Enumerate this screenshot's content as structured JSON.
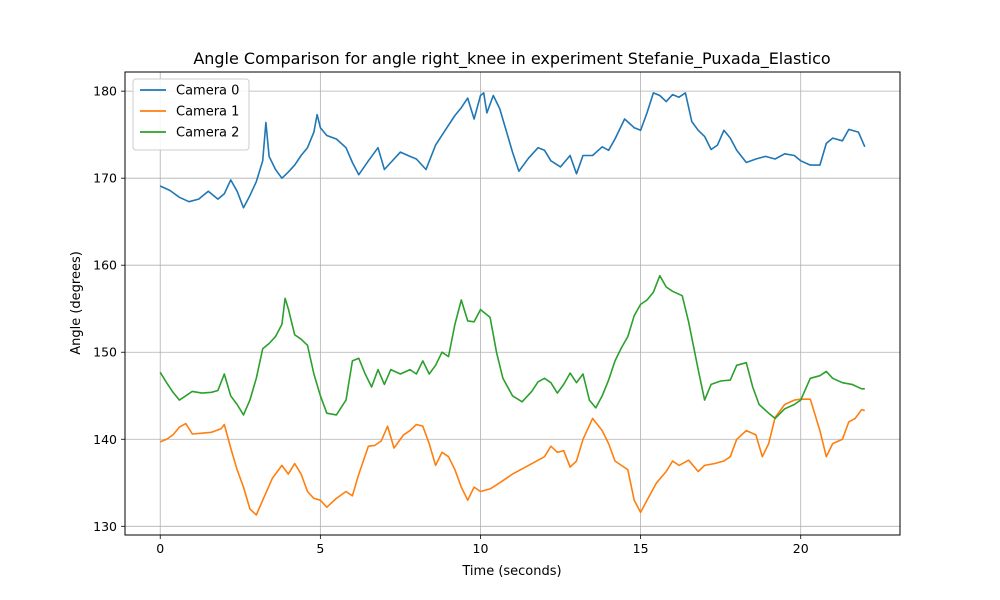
{
  "chart_data": {
    "type": "line",
    "title": "Angle Comparison for angle right_knee in experiment Stefanie_Puxada_Elastico",
    "xlabel": "Time (seconds)",
    "ylabel": "Angle (degrees)",
    "xlim": [
      -1.1,
      23.1
    ],
    "ylim": [
      129.0,
      182.2
    ],
    "xticks": [
      0,
      5,
      10,
      15,
      20
    ],
    "yticks": [
      130,
      140,
      150,
      160,
      170,
      180
    ],
    "grid": true,
    "legend_position": "top-left",
    "series": [
      {
        "name": "Camera 0",
        "color": "#1f77b4",
        "points": [
          [
            0,
            169.1
          ],
          [
            0.3,
            168.6
          ],
          [
            0.6,
            167.8
          ],
          [
            0.9,
            167.3
          ],
          [
            1.2,
            167.6
          ],
          [
            1.5,
            168.5
          ],
          [
            1.8,
            167.6
          ],
          [
            2.0,
            168.2
          ],
          [
            2.2,
            169.8
          ],
          [
            2.4,
            168.5
          ],
          [
            2.6,
            166.6
          ],
          [
            2.8,
            168.0
          ],
          [
            3.0,
            169.6
          ],
          [
            3.2,
            172.0
          ],
          [
            3.3,
            176.4
          ],
          [
            3.4,
            172.5
          ],
          [
            3.6,
            171.0
          ],
          [
            3.8,
            170.0
          ],
          [
            4.0,
            170.7
          ],
          [
            4.2,
            171.5
          ],
          [
            4.4,
            172.6
          ],
          [
            4.6,
            173.5
          ],
          [
            4.8,
            175.3
          ],
          [
            4.9,
            177.3
          ],
          [
            5.0,
            175.8
          ],
          [
            5.2,
            174.9
          ],
          [
            5.5,
            174.5
          ],
          [
            5.8,
            173.5
          ],
          [
            6.0,
            171.8
          ],
          [
            6.2,
            170.4
          ],
          [
            6.5,
            172.0
          ],
          [
            6.8,
            173.5
          ],
          [
            7.0,
            171.0
          ],
          [
            7.2,
            171.8
          ],
          [
            7.5,
            173.0
          ],
          [
            7.8,
            172.5
          ],
          [
            8.0,
            172.2
          ],
          [
            8.3,
            171.0
          ],
          [
            8.6,
            173.8
          ],
          [
            8.9,
            175.5
          ],
          [
            9.2,
            177.2
          ],
          [
            9.4,
            178.1
          ],
          [
            9.6,
            179.2
          ],
          [
            9.8,
            176.8
          ],
          [
            10.0,
            179.5
          ],
          [
            10.1,
            179.8
          ],
          [
            10.2,
            177.5
          ],
          [
            10.4,
            179.5
          ],
          [
            10.6,
            178.0
          ],
          [
            10.8,
            175.5
          ],
          [
            11.0,
            173.0
          ],
          [
            11.2,
            170.8
          ],
          [
            11.5,
            172.3
          ],
          [
            11.8,
            173.5
          ],
          [
            12.0,
            173.2
          ],
          [
            12.2,
            172.0
          ],
          [
            12.5,
            171.3
          ],
          [
            12.8,
            172.6
          ],
          [
            13.0,
            170.5
          ],
          [
            13.2,
            172.6
          ],
          [
            13.5,
            172.6
          ],
          [
            13.8,
            173.6
          ],
          [
            14.0,
            173.2
          ],
          [
            14.2,
            174.5
          ],
          [
            14.5,
            176.8
          ],
          [
            14.8,
            175.8
          ],
          [
            15.0,
            175.5
          ],
          [
            15.2,
            177.5
          ],
          [
            15.4,
            179.8
          ],
          [
            15.6,
            179.5
          ],
          [
            15.8,
            178.8
          ],
          [
            16.0,
            179.6
          ],
          [
            16.2,
            179.3
          ],
          [
            16.4,
            179.8
          ],
          [
            16.6,
            176.5
          ],
          [
            16.8,
            175.5
          ],
          [
            17.0,
            174.8
          ],
          [
            17.2,
            173.3
          ],
          [
            17.4,
            173.8
          ],
          [
            17.6,
            175.5
          ],
          [
            17.8,
            174.6
          ],
          [
            18.0,
            173.2
          ],
          [
            18.3,
            171.8
          ],
          [
            18.6,
            172.2
          ],
          [
            18.9,
            172.5
          ],
          [
            19.2,
            172.2
          ],
          [
            19.5,
            172.8
          ],
          [
            19.8,
            172.6
          ],
          [
            20.0,
            172.0
          ],
          [
            20.3,
            171.5
          ],
          [
            20.6,
            171.5
          ],
          [
            20.8,
            174.0
          ],
          [
            21.0,
            174.6
          ],
          [
            21.3,
            174.3
          ],
          [
            21.5,
            175.6
          ],
          [
            21.8,
            175.3
          ],
          [
            22.0,
            173.6
          ]
        ]
      },
      {
        "name": "Camera 1",
        "color": "#ff7f0e",
        "points": [
          [
            0,
            139.7
          ],
          [
            0.2,
            140.0
          ],
          [
            0.4,
            140.5
          ],
          [
            0.6,
            141.4
          ],
          [
            0.8,
            141.8
          ],
          [
            1.0,
            140.6
          ],
          [
            1.3,
            140.7
          ],
          [
            1.6,
            140.8
          ],
          [
            1.9,
            141.2
          ],
          [
            2.0,
            141.7
          ],
          [
            2.2,
            139.0
          ],
          [
            2.4,
            136.5
          ],
          [
            2.6,
            134.5
          ],
          [
            2.8,
            132.0
          ],
          [
            3.0,
            131.3
          ],
          [
            3.2,
            133.0
          ],
          [
            3.5,
            135.5
          ],
          [
            3.8,
            137.0
          ],
          [
            4.0,
            136.0
          ],
          [
            4.2,
            137.2
          ],
          [
            4.4,
            136.0
          ],
          [
            4.6,
            134.0
          ],
          [
            4.8,
            133.2
          ],
          [
            5.0,
            133.0
          ],
          [
            5.2,
            132.2
          ],
          [
            5.5,
            133.2
          ],
          [
            5.8,
            134.0
          ],
          [
            6.0,
            133.5
          ],
          [
            6.2,
            136.0
          ],
          [
            6.5,
            139.2
          ],
          [
            6.7,
            139.3
          ],
          [
            6.9,
            139.8
          ],
          [
            7.1,
            141.5
          ],
          [
            7.3,
            139.0
          ],
          [
            7.6,
            140.5
          ],
          [
            7.8,
            141.0
          ],
          [
            8.0,
            141.7
          ],
          [
            8.2,
            141.5
          ],
          [
            8.4,
            139.5
          ],
          [
            8.6,
            137.0
          ],
          [
            8.8,
            138.5
          ],
          [
            9.0,
            138.0
          ],
          [
            9.2,
            136.5
          ],
          [
            9.4,
            134.5
          ],
          [
            9.6,
            133.0
          ],
          [
            9.8,
            134.5
          ],
          [
            10.0,
            134.0
          ],
          [
            10.3,
            134.3
          ],
          [
            10.6,
            135.0
          ],
          [
            11.0,
            136.0
          ],
          [
            11.5,
            137.0
          ],
          [
            12.0,
            138.0
          ],
          [
            12.2,
            139.2
          ],
          [
            12.4,
            138.5
          ],
          [
            12.6,
            138.7
          ],
          [
            12.8,
            136.8
          ],
          [
            13.0,
            137.5
          ],
          [
            13.2,
            140.0
          ],
          [
            13.5,
            142.4
          ],
          [
            13.8,
            141.0
          ],
          [
            14.0,
            139.5
          ],
          [
            14.2,
            137.5
          ],
          [
            14.4,
            137.0
          ],
          [
            14.6,
            136.5
          ],
          [
            14.8,
            133.0
          ],
          [
            15.0,
            131.6
          ],
          [
            15.2,
            133.0
          ],
          [
            15.5,
            135.0
          ],
          [
            15.8,
            136.3
          ],
          [
            16.0,
            137.5
          ],
          [
            16.2,
            137.0
          ],
          [
            16.5,
            137.6
          ],
          [
            16.8,
            136.3
          ],
          [
            17.0,
            137.0
          ],
          [
            17.3,
            137.2
          ],
          [
            17.6,
            137.5
          ],
          [
            17.8,
            138.0
          ],
          [
            18.0,
            140.0
          ],
          [
            18.3,
            141.0
          ],
          [
            18.6,
            140.5
          ],
          [
            18.8,
            138.0
          ],
          [
            19.0,
            139.5
          ],
          [
            19.2,
            142.5
          ],
          [
            19.5,
            144.0
          ],
          [
            19.8,
            144.5
          ],
          [
            20.0,
            144.6
          ],
          [
            20.3,
            144.6
          ],
          [
            20.6,
            141.0
          ],
          [
            20.8,
            138.0
          ],
          [
            21.0,
            139.5
          ],
          [
            21.3,
            140.0
          ],
          [
            21.5,
            142.0
          ],
          [
            21.7,
            142.4
          ],
          [
            21.9,
            143.4
          ],
          [
            22.0,
            143.3
          ]
        ]
      },
      {
        "name": "Camera 2",
        "color": "#2ca02c",
        "points": [
          [
            0,
            147.7
          ],
          [
            0.2,
            146.5
          ],
          [
            0.4,
            145.4
          ],
          [
            0.6,
            144.5
          ],
          [
            0.8,
            145.0
          ],
          [
            1.0,
            145.5
          ],
          [
            1.3,
            145.3
          ],
          [
            1.6,
            145.4
          ],
          [
            1.8,
            145.6
          ],
          [
            2.0,
            147.5
          ],
          [
            2.2,
            145.0
          ],
          [
            2.4,
            144.0
          ],
          [
            2.6,
            142.8
          ],
          [
            2.8,
            144.5
          ],
          [
            3.0,
            147.0
          ],
          [
            3.2,
            150.4
          ],
          [
            3.4,
            151.0
          ],
          [
            3.6,
            151.8
          ],
          [
            3.8,
            153.2
          ],
          [
            3.9,
            156.2
          ],
          [
            4.0,
            155.0
          ],
          [
            4.2,
            152.0
          ],
          [
            4.4,
            151.5
          ],
          [
            4.6,
            150.8
          ],
          [
            4.8,
            147.5
          ],
          [
            5.0,
            145.0
          ],
          [
            5.2,
            143.0
          ],
          [
            5.5,
            142.8
          ],
          [
            5.8,
            144.5
          ],
          [
            6.0,
            149.0
          ],
          [
            6.2,
            149.3
          ],
          [
            6.4,
            147.5
          ],
          [
            6.6,
            146.0
          ],
          [
            6.8,
            148.0
          ],
          [
            7.0,
            146.3
          ],
          [
            7.2,
            148.0
          ],
          [
            7.5,
            147.5
          ],
          [
            7.8,
            148.0
          ],
          [
            8.0,
            147.5
          ],
          [
            8.2,
            149.0
          ],
          [
            8.4,
            147.5
          ],
          [
            8.6,
            148.5
          ],
          [
            8.8,
            150.0
          ],
          [
            9.0,
            149.5
          ],
          [
            9.2,
            153.2
          ],
          [
            9.4,
            156.0
          ],
          [
            9.6,
            153.6
          ],
          [
            9.8,
            153.5
          ],
          [
            10.0,
            154.9
          ],
          [
            10.3,
            154.0
          ],
          [
            10.5,
            150.0
          ],
          [
            10.7,
            147.0
          ],
          [
            11.0,
            145.0
          ],
          [
            11.3,
            144.3
          ],
          [
            11.6,
            145.5
          ],
          [
            11.8,
            146.6
          ],
          [
            12.0,
            147.0
          ],
          [
            12.2,
            146.5
          ],
          [
            12.4,
            145.3
          ],
          [
            12.6,
            146.3
          ],
          [
            12.8,
            147.6
          ],
          [
            13.0,
            146.5
          ],
          [
            13.2,
            147.5
          ],
          [
            13.4,
            144.5
          ],
          [
            13.6,
            143.6
          ],
          [
            13.8,
            145.0
          ],
          [
            14.0,
            146.8
          ],
          [
            14.2,
            149.0
          ],
          [
            14.4,
            150.5
          ],
          [
            14.6,
            151.8
          ],
          [
            14.8,
            154.2
          ],
          [
            15.0,
            155.5
          ],
          [
            15.2,
            156.0
          ],
          [
            15.4,
            156.9
          ],
          [
            15.6,
            158.8
          ],
          [
            15.8,
            157.5
          ],
          [
            16.0,
            157.0
          ],
          [
            16.3,
            156.5
          ],
          [
            16.5,
            153.5
          ],
          [
            16.8,
            148.0
          ],
          [
            17.0,
            144.5
          ],
          [
            17.2,
            146.3
          ],
          [
            17.5,
            146.7
          ],
          [
            17.8,
            146.8
          ],
          [
            18.0,
            148.5
          ],
          [
            18.3,
            148.8
          ],
          [
            18.5,
            146.0
          ],
          [
            18.7,
            144.0
          ],
          [
            19.0,
            143.0
          ],
          [
            19.2,
            142.4
          ],
          [
            19.5,
            143.5
          ],
          [
            19.8,
            144.0
          ],
          [
            20.0,
            144.5
          ],
          [
            20.3,
            147.0
          ],
          [
            20.6,
            147.3
          ],
          [
            20.8,
            147.8
          ],
          [
            21.0,
            147.0
          ],
          [
            21.3,
            146.5
          ],
          [
            21.6,
            146.3
          ],
          [
            21.9,
            145.8
          ],
          [
            22.0,
            145.8
          ]
        ]
      }
    ]
  }
}
